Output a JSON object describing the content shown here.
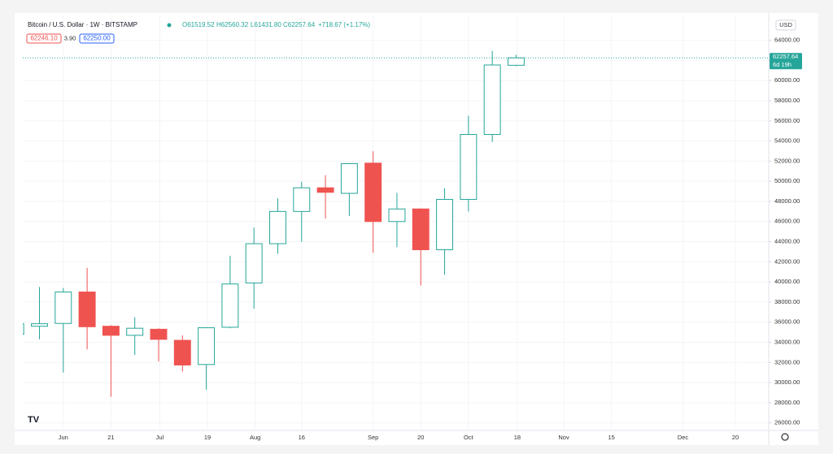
{
  "chart_data": {
    "type": "candlestick",
    "header": {
      "symbol": "Bitcoin / U.S. Dollar · 1W · BITSTAMP",
      "open": "O61519.52",
      "high": "H62560.32",
      "low": "L61431.80",
      "close": "C62257.64",
      "change": "+718.67 (+1.17%)"
    },
    "bid": "62246.10",
    "spread": "3.90",
    "ask": "62250.00",
    "currency": "USD",
    "last_price": 62257.64,
    "countdown": "6d 19h",
    "up_color": "#26a69a",
    "down_color": "#ef5350",
    "grid": true,
    "x": [
      0,
      1,
      2,
      3,
      4,
      5,
      6,
      7,
      8,
      9,
      10,
      11,
      12,
      13,
      14,
      15,
      16,
      17,
      18,
      19,
      20,
      21
    ],
    "open": [
      34800,
      35600,
      35880,
      39000,
      35600,
      34700,
      35300,
      34200,
      31800,
      35500,
      39900,
      43800,
      47000,
      49350,
      48800,
      51800,
      46000,
      47250,
      43200,
      48200,
      54650,
      61519.52
    ],
    "high": [
      36000,
      39500,
      39400,
      41400,
      35700,
      36500,
      35400,
      34700,
      35500,
      42600,
      45400,
      48300,
      49950,
      50600,
      51800,
      52980,
      48850,
      47300,
      49300,
      56500,
      62950,
      62560.32
    ],
    "low": [
      34700,
      34300,
      31000,
      33300,
      28600,
      32750,
      32100,
      31100,
      29300,
      35400,
      37350,
      42800,
      44000,
      46300,
      46550,
      42900,
      43450,
      39650,
      40700,
      47000,
      53900,
      61431.8
    ],
    "close": [
      35850,
      35850,
      39000,
      35550,
      34700,
      35400,
      34300,
      31750,
      35450,
      39800,
      43800,
      47000,
      49350,
      48900,
      51750,
      46000,
      47250,
      43200,
      48200,
      54650,
      61550,
      62257.64
    ],
    "xlim": [
      0.3,
      31.6
    ],
    "xticks": [
      {
        "value": 2,
        "label": "Jun"
      },
      {
        "value": 4,
        "label": "21"
      },
      {
        "value": 6.05,
        "label": "Jul"
      },
      {
        "value": 8.05,
        "label": "19"
      },
      {
        "value": 10.05,
        "label": "Aug"
      },
      {
        "value": 12,
        "label": "16"
      },
      {
        "value": 15,
        "label": "Sep"
      },
      {
        "value": 17,
        "label": "20"
      },
      {
        "value": 19,
        "label": "Oct"
      },
      {
        "value": 21.05,
        "label": "18"
      },
      {
        "value": 23,
        "label": "Nov"
      },
      {
        "value": 25,
        "label": "15"
      },
      {
        "value": 28,
        "label": "Dec"
      },
      {
        "value": 30.2,
        "label": "20"
      }
    ],
    "ylim": [
      25250,
      66550
    ],
    "yticks": [
      {
        "value": 26000,
        "label": "26000.00"
      },
      {
        "value": 28000,
        "label": "28000.00"
      },
      {
        "value": 30000,
        "label": "30000.00"
      },
      {
        "value": 32000,
        "label": "32000.00"
      },
      {
        "value": 34000,
        "label": "34000.00"
      },
      {
        "value": 36000,
        "label": "36000.00"
      },
      {
        "value": 38000,
        "label": "38000.00"
      },
      {
        "value": 40000,
        "label": "40000.00"
      },
      {
        "value": 42000,
        "label": "42000.00"
      },
      {
        "value": 44000,
        "label": "44000.00"
      },
      {
        "value": 46000,
        "label": "46000.00"
      },
      {
        "value": 48000,
        "label": "48000.00"
      },
      {
        "value": 50000,
        "label": "50000.00"
      },
      {
        "value": 52000,
        "label": "52000.00"
      },
      {
        "value": 54000,
        "label": "54000.00"
      },
      {
        "value": 56000,
        "label": "56000.00"
      },
      {
        "value": 58000,
        "label": "58000.00"
      },
      {
        "value": 60000,
        "label": "60000.00"
      },
      {
        "value": 62000,
        "label": "62000.00"
      },
      {
        "value": 64000,
        "label": "64000.00"
      }
    ]
  }
}
